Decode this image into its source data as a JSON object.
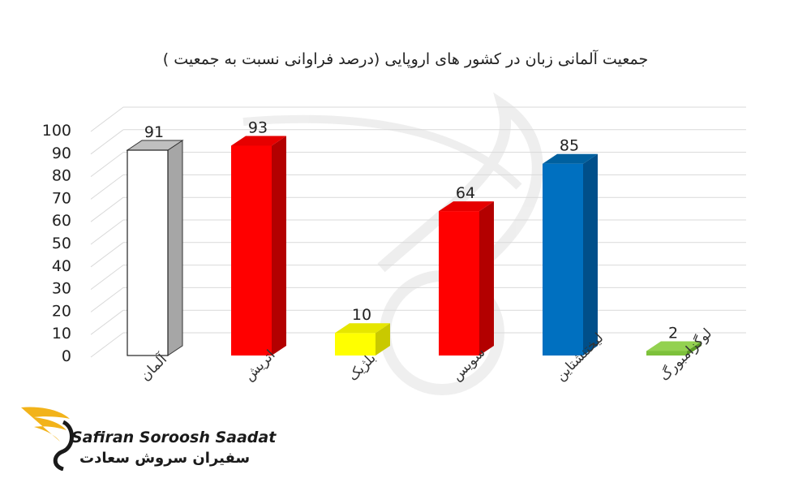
{
  "chart_data": {
    "type": "bar",
    "title": "جمعیت آلمانی زبان در کشور های اروپایی (درصد فراوانی نسبت به جمعیت )",
    "categories": [
      "آلمان",
      "اتریش",
      "بلژیک",
      "سویس",
      "لیختنشتاین",
      "لوگزامبورگ"
    ],
    "values": [
      91,
      93,
      10,
      64,
      85,
      2
    ],
    "ylim": [
      0,
      100
    ],
    "yticks": [
      0,
      10,
      20,
      30,
      40,
      50,
      60,
      70,
      80,
      90,
      100
    ],
    "grid": true,
    "bar_colors": [
      "#ffffff",
      "#ff0000",
      "#ffff00",
      "#ff0000",
      "#0070c0",
      "#7dc13b"
    ],
    "side_colors": [
      "#a6a6a6",
      "#b30000",
      "#c9c900",
      "#b30000",
      "#004f8a",
      "#5a9a24"
    ],
    "top_colors": [
      "#bfbfbf",
      "#e60000",
      "#e6e600",
      "#e60000",
      "#00609f",
      "#93d150"
    ]
  },
  "brand": {
    "name_en": "Safiran Soroosh Saadat",
    "name_fa": "سفیران سروش سعادت",
    "logo_color": "#f2b31a"
  }
}
